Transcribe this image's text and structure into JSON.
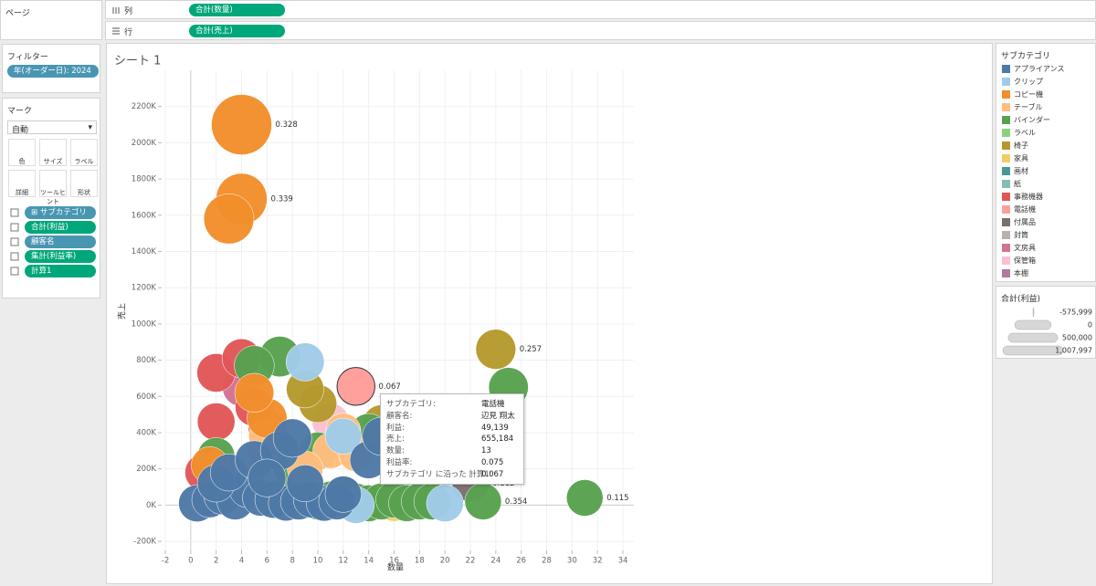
{
  "shelves": {
    "pages_title": "ページ",
    "columns_label": "列",
    "columns_pill": "合計(数量)",
    "rows_label": "行",
    "rows_pill": "合計(売上)"
  },
  "filters": {
    "title": "フィルター",
    "pill": "年(オーダー日): 2024"
  },
  "marks": {
    "title": "マーク",
    "type": "自動",
    "buttons": [
      "色",
      "サイズ",
      "ラベル",
      "詳細",
      "ツールヒント",
      "形状"
    ],
    "pills": [
      {
        "text": "⊞ サブカテゴリ",
        "kind": "dimension"
      },
      {
        "text": "合計(利益)",
        "kind": "measure"
      },
      {
        "text": "顧客名",
        "kind": "dimension"
      },
      {
        "text": "集計(利益率)",
        "kind": "measure"
      },
      {
        "text": "計算1",
        "kind": "measure"
      }
    ]
  },
  "sheet_title": "シート 1",
  "tooltip": {
    "rows": [
      [
        "サブカテゴリ:",
        "電話機"
      ],
      [
        "顧客名:",
        "辺見 翔太"
      ],
      [
        "利益:",
        "49,139"
      ],
      [
        "売上:",
        "655,184"
      ],
      [
        "数量:",
        "13"
      ],
      [
        "利益率:",
        "0.075"
      ],
      [
        "サブカテゴリ に沿った 計算1:",
        "0.067"
      ]
    ]
  },
  "chart_data": {
    "type": "scatter",
    "x_label": "数量",
    "y_label": "売上",
    "legend_title": "サブカテゴリ",
    "grid": true,
    "xlim": [
      -2,
      34
    ],
    "xticks": [
      -2,
      0,
      2,
      4,
      6,
      8,
      10,
      12,
      14,
      16,
      18,
      20,
      22,
      24,
      26,
      28,
      30,
      32,
      34
    ],
    "ylim": [
      -250000,
      2400000
    ],
    "yticks": [
      {
        "value": -200000,
        "label": "-200K"
      },
      {
        "value": 0,
        "label": "0K"
      },
      {
        "value": 200000,
        "label": "200K"
      },
      {
        "value": 400000,
        "label": "400K"
      },
      {
        "value": 600000,
        "label": "600K"
      },
      {
        "value": 800000,
        "label": "800K"
      },
      {
        "value": 1000000,
        "label": "1000K"
      },
      {
        "value": 1200000,
        "label": "1200K"
      },
      {
        "value": 1400000,
        "label": "1400K"
      },
      {
        "value": 1600000,
        "label": "1600K"
      },
      {
        "value": 1800000,
        "label": "1800K"
      },
      {
        "value": 2000000,
        "label": "2000K"
      },
      {
        "value": 2200000,
        "label": "2200K"
      }
    ],
    "size_legend": {
      "title": "合計(利益)",
      "values": [
        {
          "value": -575999,
          "label": "-575,999"
        },
        {
          "value": 0,
          "label": "0"
        },
        {
          "value": 500000,
          "label": "500,000"
        },
        {
          "value": 1007997,
          "label": "1,007,997"
        }
      ]
    },
    "series": [
      {
        "name": "アプライアンス",
        "color": "#4e79a7",
        "x": [
          0.5,
          1.5,
          2.5,
          3.5,
          4.5,
          5.5,
          6.5,
          7.5,
          8.5,
          9.5,
          10.5,
          11.5,
          2,
          3,
          5,
          7,
          8,
          6,
          9,
          14,
          15,
          12
        ],
        "values": [
          10000,
          30000,
          50000,
          20000,
          90000,
          40000,
          30000,
          10000,
          20000,
          30000,
          10000,
          20000,
          120000,
          180000,
          250000,
          300000,
          370000,
          150000,
          120000,
          250000,
          380000,
          60000
        ],
        "sizes": [
          20000,
          -10000,
          30000,
          10000,
          50000,
          0,
          20000,
          -30000,
          10000,
          0,
          -20000,
          5000,
          40000,
          30000,
          60000,
          80000,
          70000,
          50000,
          20000,
          40000,
          60000,
          0
        ]
      },
      {
        "name": "クリップ",
        "color": "#a0cbe8",
        "x": [
          9,
          20,
          13,
          12
        ],
        "values": [
          790000,
          10000,
          0,
          380000
        ],
        "sizes": [
          60000,
          20000,
          10000,
          -10000
        ]
      },
      {
        "name": "コピー機",
        "color": "#f28e2b",
        "x": [
          4,
          4,
          3,
          6,
          5,
          2,
          1.5
        ],
        "values": [
          2100000,
          1690000,
          1580000,
          480000,
          620000,
          180000,
          220000
        ],
        "sizes": [
          1007997,
          564000,
          520000,
          120000,
          90000,
          40000,
          30000
        ],
        "labels": [
          0.328,
          0.339,
          null,
          null,
          null,
          null,
          null
        ]
      },
      {
        "name": "テーブル",
        "color": "#ffbe7d",
        "x": [
          12,
          11,
          9,
          6,
          13
        ],
        "values": [
          410000,
          300000,
          200000,
          380000,
          280000
        ],
        "sizes": [
          -40000,
          -30000,
          -20000,
          10000,
          -60000
        ]
      },
      {
        "name": "バインダー",
        "color": "#59a14f",
        "x": [
          25,
          31,
          23,
          7,
          5,
          2,
          9,
          10,
          11,
          12,
          13,
          14,
          15,
          16,
          17,
          18,
          19,
          14,
          8,
          10
        ],
        "values": [
          650000,
          40000,
          20000,
          820000,
          770000,
          270000,
          40000,
          20000,
          30000,
          60000,
          20000,
          10000,
          20000,
          30000,
          10000,
          20000,
          20000,
          400000,
          200000,
          300000
        ],
        "sizes": [
          110000,
          4600,
          7000,
          140000,
          120000,
          30000,
          20000,
          10000,
          15000,
          10000,
          5000,
          10000,
          8000,
          10000,
          5000,
          6000,
          10000,
          60000,
          40000,
          30000
        ],
        "labels": [
          null,
          0.115,
          0.354,
          null,
          null,
          null,
          null,
          null,
          null,
          null,
          null,
          null,
          null,
          null,
          null,
          null,
          null,
          null,
          null,
          null
        ]
      },
      {
        "name": "ラベル",
        "color": "#8cd17d",
        "x": [],
        "values": [],
        "sizes": []
      },
      {
        "name": "椅子",
        "color": "#b6992d",
        "x": [
          24,
          10,
          9,
          15
        ],
        "values": [
          860000,
          560000,
          640000,
          450000
        ],
        "sizes": [
          121000,
          50000,
          40000,
          30000
        ],
        "labels": [
          0.257,
          null,
          null,
          null
        ]
      },
      {
        "name": "家具",
        "color": "#f1ce63",
        "x": [
          16
        ],
        "values": [
          10000
        ],
        "sizes": [
          -10000
        ]
      },
      {
        "name": "画材",
        "color": "#499894",
        "x": [],
        "values": [],
        "sizes": []
      },
      {
        "name": "紙",
        "color": "#86bcb6",
        "x": [],
        "values": [],
        "sizes": []
      },
      {
        "name": "事務機器",
        "color": "#e15759",
        "x": [
          2,
          4,
          2,
          5,
          1
        ],
        "values": [
          730000,
          810000,
          460000,
          540000,
          180000
        ],
        "sizes": [
          70000,
          90000,
          40000,
          60000,
          20000
        ]
      },
      {
        "name": "電話機",
        "color": "#ff9d9a",
        "x": [
          13,
          6
        ],
        "values": [
          655184,
          300000
        ],
        "sizes": [
          49139,
          30000
        ],
        "labels": [
          0.067,
          null
        ]
      },
      {
        "name": "付属品",
        "color": "#79706e",
        "x": [
          22
        ],
        "values": [
          120000
        ],
        "sizes": [
          10000
        ],
        "labels": [
          0.112
        ]
      },
      {
        "name": "封筒",
        "color": "#bab0ac",
        "x": [],
        "values": [],
        "sizes": []
      },
      {
        "name": "文房具",
        "color": "#d37295",
        "x": [
          4,
          6
        ],
        "values": [
          650000,
          420000
        ],
        "sizes": [
          60000,
          40000
        ]
      },
      {
        "name": "保管箱",
        "color": "#fabfd2",
        "x": [
          11
        ],
        "values": [
          460000
        ],
        "sizes": [
          20000
        ]
      },
      {
        "name": "本棚",
        "color": "#b07aa1",
        "x": [],
        "values": [],
        "sizes": []
      }
    ]
  }
}
